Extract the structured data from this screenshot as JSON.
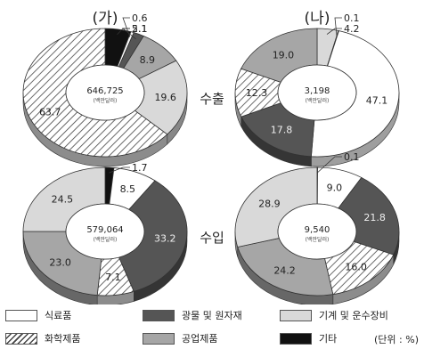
{
  "chart_data": {
    "type": "pie",
    "categories": [
      "식료품",
      "광물 및 원자재",
      "기계 및 운수장비",
      "화학제품",
      "공업제품",
      "기타"
    ],
    "category_colors": [
      "#ffffff",
      "#555555",
      "#d9d9d9",
      "hatch",
      "#a6a6a6",
      "#111111"
    ],
    "columns": [
      "(가)",
      "(나)"
    ],
    "rows": [
      "수출",
      "수입"
    ],
    "charts": [
      {
        "column": "(가)",
        "row": "수출",
        "total": "646,725",
        "total_unit": "(백만달러)",
        "order": [
          "기타",
          "식료품",
          "광물 및 원자재",
          "공업제품",
          "기계 및 운수장비",
          "화학제품"
        ],
        "values": [
          5.1,
          0.6,
          2.1,
          8.9,
          19.6,
          63.7
        ],
        "labels": [
          "5.1",
          "0.6",
          "2.1",
          "8.9",
          "19.6",
          "63.7"
        ]
      },
      {
        "column": "(나)",
        "row": "수출",
        "total": "3,198",
        "total_unit": "(백만달러)",
        "order": [
          "기계 및 운수장비",
          "기타",
          "식료품",
          "광물 및 원자재",
          "화학제품",
          "공업제품"
        ],
        "values": [
          4.2,
          0.1,
          47.1,
          17.8,
          12.3,
          19.0
        ],
        "labels": [
          "4.2",
          "0.1",
          "47.1",
          "17.8",
          "12.3",
          "19.0"
        ]
      },
      {
        "column": "(가)",
        "row": "수입",
        "total": "579,064",
        "total_unit": "(백만달러)",
        "order": [
          "기타",
          "식료품",
          "광물 및 원자재",
          "화학제품",
          "공업제품",
          "기계 및 운수장비"
        ],
        "values": [
          1.7,
          8.5,
          33.2,
          7.1,
          23.0,
          24.5
        ],
        "labels": [
          "1.7",
          "8.5",
          "33.2",
          "7.1",
          "23.0",
          "24.5"
        ]
      },
      {
        "column": "(나)",
        "row": "수입",
        "total": "9,540",
        "total_unit": "(백만달러)",
        "order": [
          "기타",
          "식료품",
          "광물 및 원자재",
          "화학제품",
          "공업제품",
          "기계 및 운수장비"
        ],
        "values": [
          0.1,
          9.0,
          21.8,
          16.0,
          24.2,
          28.9
        ],
        "labels": [
          "0.1",
          "9.0",
          "21.8",
          "16.0",
          "24.2",
          "28.9"
        ]
      }
    ],
    "unit_note": "(단위 : %)",
    "legend_placement": "bottom"
  }
}
